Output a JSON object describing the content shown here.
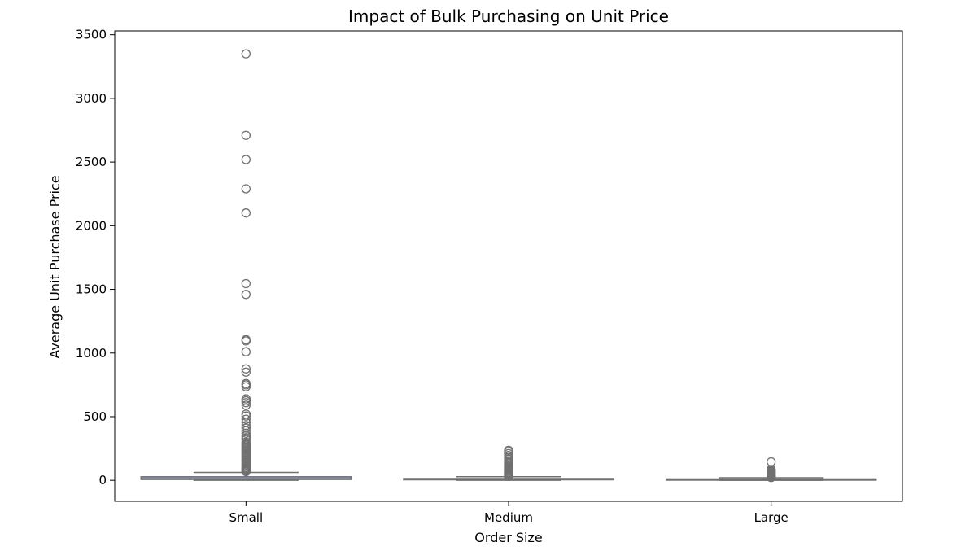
{
  "chart_data": {
    "type": "boxplot",
    "title": "Impact of Bulk Purchasing on Unit Price",
    "xlabel": "Order Size",
    "ylabel": "Average Unit Purchase Price",
    "ylim": [
      -165,
      3530
    ],
    "yticks": [
      0,
      500,
      1000,
      1500,
      2000,
      2500,
      3000,
      3500
    ],
    "grid": false,
    "legend": "none",
    "categories": [
      "Small",
      "Medium",
      "Large"
    ],
    "box_color": "#8da0cb",
    "edge_color": "#707070",
    "boxes": [
      {
        "category": "Small",
        "whisker_low": 0.5,
        "q1": 7,
        "median": 12,
        "q3": 28,
        "whisker_high": 62,
        "outliers": [
          3350,
          2710,
          2520,
          2290,
          2100,
          1545,
          1460,
          1105,
          1095,
          1010,
          875,
          850,
          760,
          750,
          735,
          640,
          625,
          610,
          590,
          520,
          505,
          480,
          455,
          430,
          410,
          390,
          370,
          350,
          335,
          320,
          300,
          290,
          280,
          270,
          260,
          250,
          240,
          230,
          220,
          210,
          200,
          190,
          180,
          170,
          160,
          150,
          140,
          130,
          120,
          110,
          100,
          92,
          85,
          78,
          72,
          68
        ]
      },
      {
        "category": "Medium",
        "whisker_low": 0.5,
        "q1": 5,
        "median": 9,
        "q3": 14,
        "whisker_high": 28,
        "outliers": [
          235,
          225,
          210,
          195,
          180,
          165,
          150,
          140,
          130,
          120,
          110,
          100,
          92,
          85,
          78,
          70,
          62,
          55,
          48,
          42,
          36,
          31
        ]
      },
      {
        "category": "Large",
        "whisker_low": 0.5,
        "q1": 4,
        "median": 7,
        "q3": 11,
        "whisker_high": 20,
        "outliers": [
          145,
          85,
          78,
          72,
          66,
          60,
          54,
          48,
          42,
          36,
          30,
          25,
          22
        ]
      }
    ]
  }
}
